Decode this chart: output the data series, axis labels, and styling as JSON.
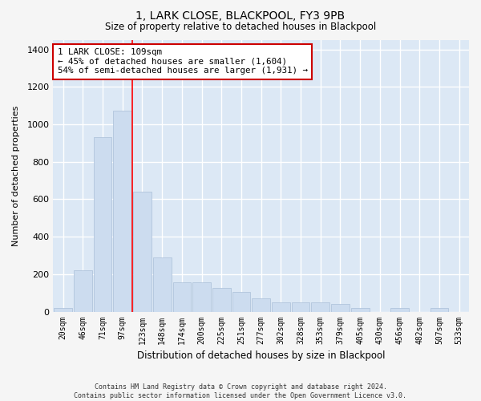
{
  "title": "1, LARK CLOSE, BLACKPOOL, FY3 9PB",
  "subtitle": "Size of property relative to detached houses in Blackpool",
  "xlabel": "Distribution of detached houses by size in Blackpool",
  "ylabel": "Number of detached properties",
  "footer_line1": "Contains HM Land Registry data © Crown copyright and database right 2024.",
  "footer_line2": "Contains public sector information licensed under the Open Government Licence v3.0.",
  "categories": [
    "20sqm",
    "46sqm",
    "71sqm",
    "97sqm",
    "123sqm",
    "148sqm",
    "174sqm",
    "200sqm",
    "225sqm",
    "251sqm",
    "277sqm",
    "302sqm",
    "328sqm",
    "353sqm",
    "379sqm",
    "405sqm",
    "430sqm",
    "456sqm",
    "482sqm",
    "507sqm",
    "533sqm"
  ],
  "values": [
    18,
    220,
    930,
    1075,
    640,
    290,
    155,
    155,
    125,
    105,
    70,
    50,
    50,
    50,
    40,
    18,
    0,
    18,
    0,
    18,
    0
  ],
  "bar_color": "#ccdcef",
  "bar_edge_color": "#aabfd8",
  "background_color": "#dce8f5",
  "grid_color": "#ffffff",
  "annotation_text": "1 LARK CLOSE: 109sqm\n← 45% of detached houses are smaller (1,604)\n54% of semi-detached houses are larger (1,931) →",
  "annotation_box_color": "#ffffff",
  "annotation_box_edge": "#cc0000",
  "ylim": [
    0,
    1450
  ],
  "yticks": [
    0,
    200,
    400,
    600,
    800,
    1000,
    1200,
    1400
  ],
  "red_line_bin": 3.48,
  "fig_facecolor": "#f5f5f5"
}
